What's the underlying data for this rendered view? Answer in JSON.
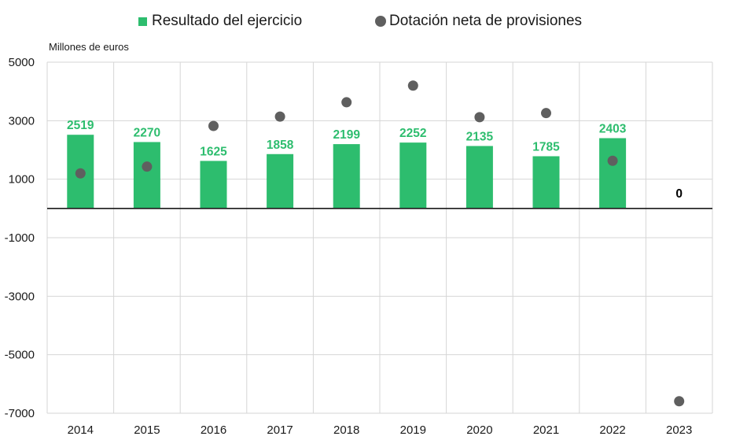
{
  "legend": {
    "bars_label": "Resultado del ejercicio",
    "dots_label": "Dotación neta de provisiones"
  },
  "chart_data": {
    "type": "bar",
    "ylabel": "Millones de euros",
    "ylim": [
      -7000,
      5000
    ],
    "yticks": [
      5000,
      3000,
      1000,
      -1000,
      -3000,
      -5000,
      -7000
    ],
    "grid": true,
    "legend_position": "top",
    "categories": [
      "2014",
      "2015",
      "2016",
      "2017",
      "2018",
      "2019",
      "2020",
      "2021",
      "2022",
      "2023"
    ],
    "series": [
      {
        "name": "Resultado del ejercicio",
        "kind": "bar",
        "color": "#2dbd6e",
        "values": [
          2519,
          2270,
          1625,
          1858,
          2199,
          2252,
          2135,
          1785,
          2403,
          0
        ]
      },
      {
        "name": "Dotación neta de provisiones",
        "kind": "dot",
        "color": "#5f5f5f",
        "values": [
          1200,
          1430,
          2820,
          3140,
          3630,
          4200,
          3120,
          3260,
          1630,
          -6590
        ]
      }
    ],
    "zero_label_color": "#000000"
  }
}
